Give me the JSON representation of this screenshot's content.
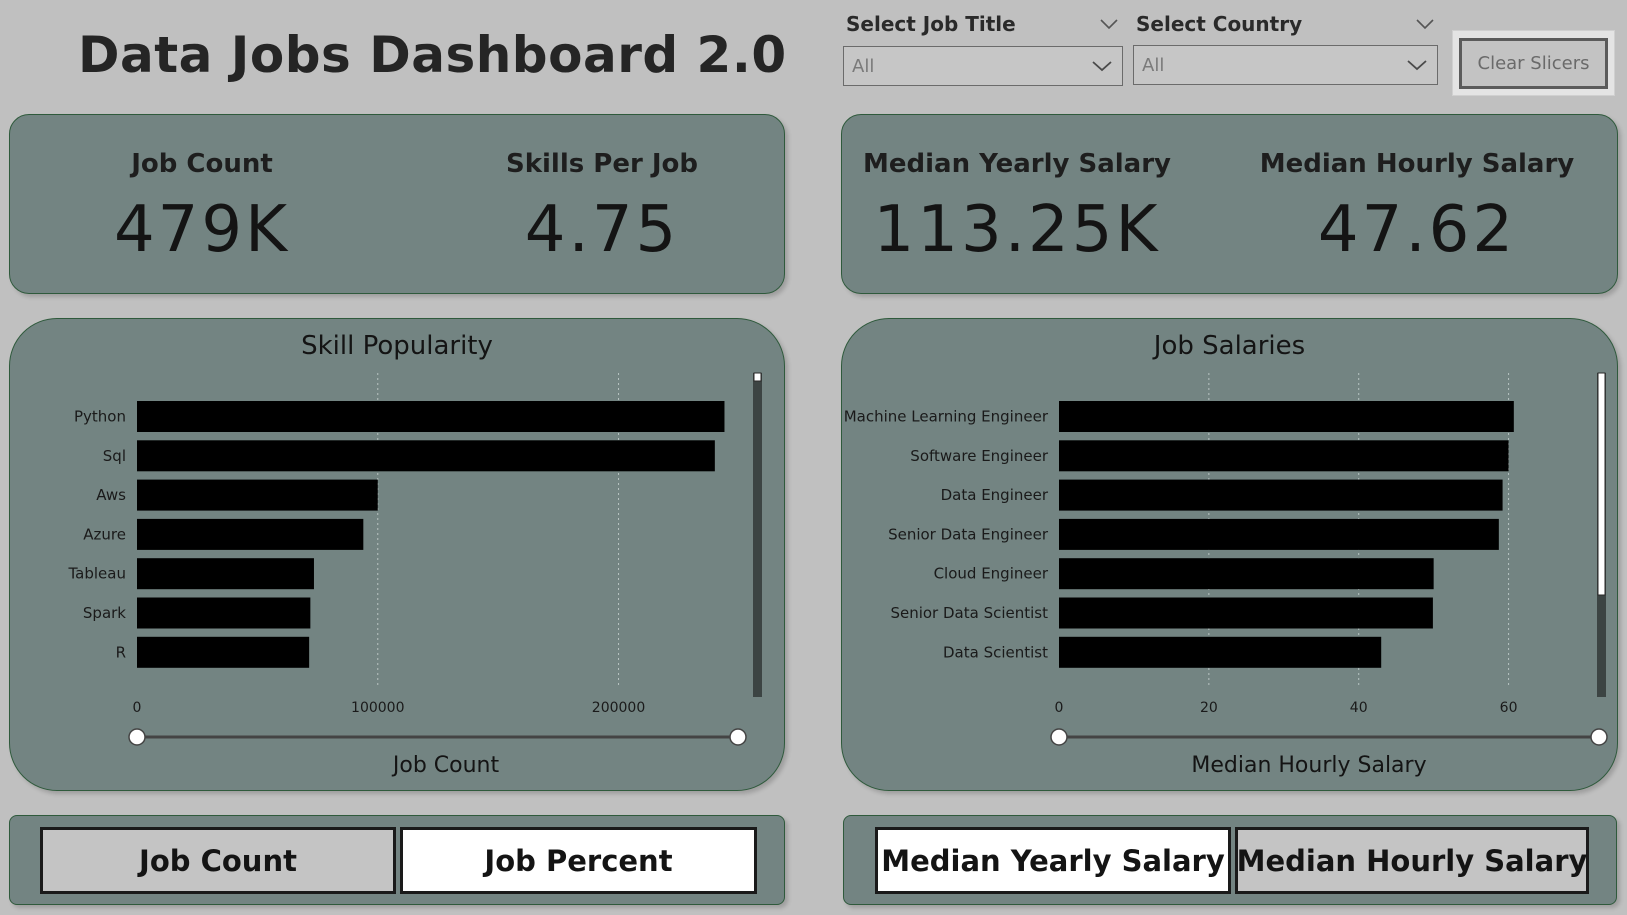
{
  "title": "Data Jobs Dashboard 2.0",
  "slicers": {
    "job_title": {
      "label": "Select Job Title",
      "value": "All"
    },
    "country": {
      "label": "Select Country",
      "value": "All"
    },
    "clear_label": "Clear Slicers"
  },
  "kpis": {
    "job_count": {
      "label": "Job Count",
      "value": "479K"
    },
    "skills_per_job": {
      "label": "Skills Per Job",
      "value": "4.75"
    },
    "median_yearly": {
      "label": "Median Yearly Salary",
      "value": "113.25K"
    },
    "median_hourly": {
      "label": "Median Hourly Salary",
      "value": "47.62"
    }
  },
  "chart_data": [
    {
      "type": "bar",
      "orientation": "horizontal",
      "title": "Skill Popularity",
      "xlabel": "Job Count",
      "ylabel": "",
      "categories": [
        "Python",
        "Sql",
        "Aws",
        "Azure",
        "Tableau",
        "Spark",
        "R"
      ],
      "values": [
        244000,
        240000,
        100000,
        94000,
        73500,
        72000,
        71500
      ],
      "xlim": [
        0,
        260000
      ],
      "xticks": [
        0,
        100000,
        200000
      ],
      "xtick_labels": [
        "0",
        "100000",
        "200000"
      ],
      "bar_color": "#000000",
      "grid": true
    },
    {
      "type": "bar",
      "orientation": "horizontal",
      "title": "Job Salaries",
      "xlabel": "Median Hourly Salary",
      "ylabel": "",
      "categories": [
        "Machine Learning Engineer",
        "Software Engineer",
        "Data Engineer",
        "Senior Data Engineer",
        "Cloud Engineer",
        "Senior Data Scientist",
        "Data Scientist"
      ],
      "values": [
        60.7,
        60.0,
        59.2,
        58.7,
        50.0,
        49.9,
        43.0
      ],
      "xlim": [
        0,
        71
      ],
      "xticks": [
        0,
        20,
        40,
        60
      ],
      "xtick_labels": [
        "0",
        "20",
        "40",
        "60"
      ],
      "bar_color": "#000000",
      "grid": true
    }
  ],
  "toggles": {
    "left": [
      {
        "label": "Job Count",
        "active": false
      },
      {
        "label": "Job Percent",
        "active": true
      }
    ],
    "right": [
      {
        "label": "Median Yearly Salary",
        "active": true
      },
      {
        "label": "Median Hourly Salary",
        "active": false
      }
    ]
  },
  "colors": {
    "background": "#c0c0c0",
    "card": "#738482",
    "card_border": "#2f5a3c",
    "bar": "#000000"
  }
}
